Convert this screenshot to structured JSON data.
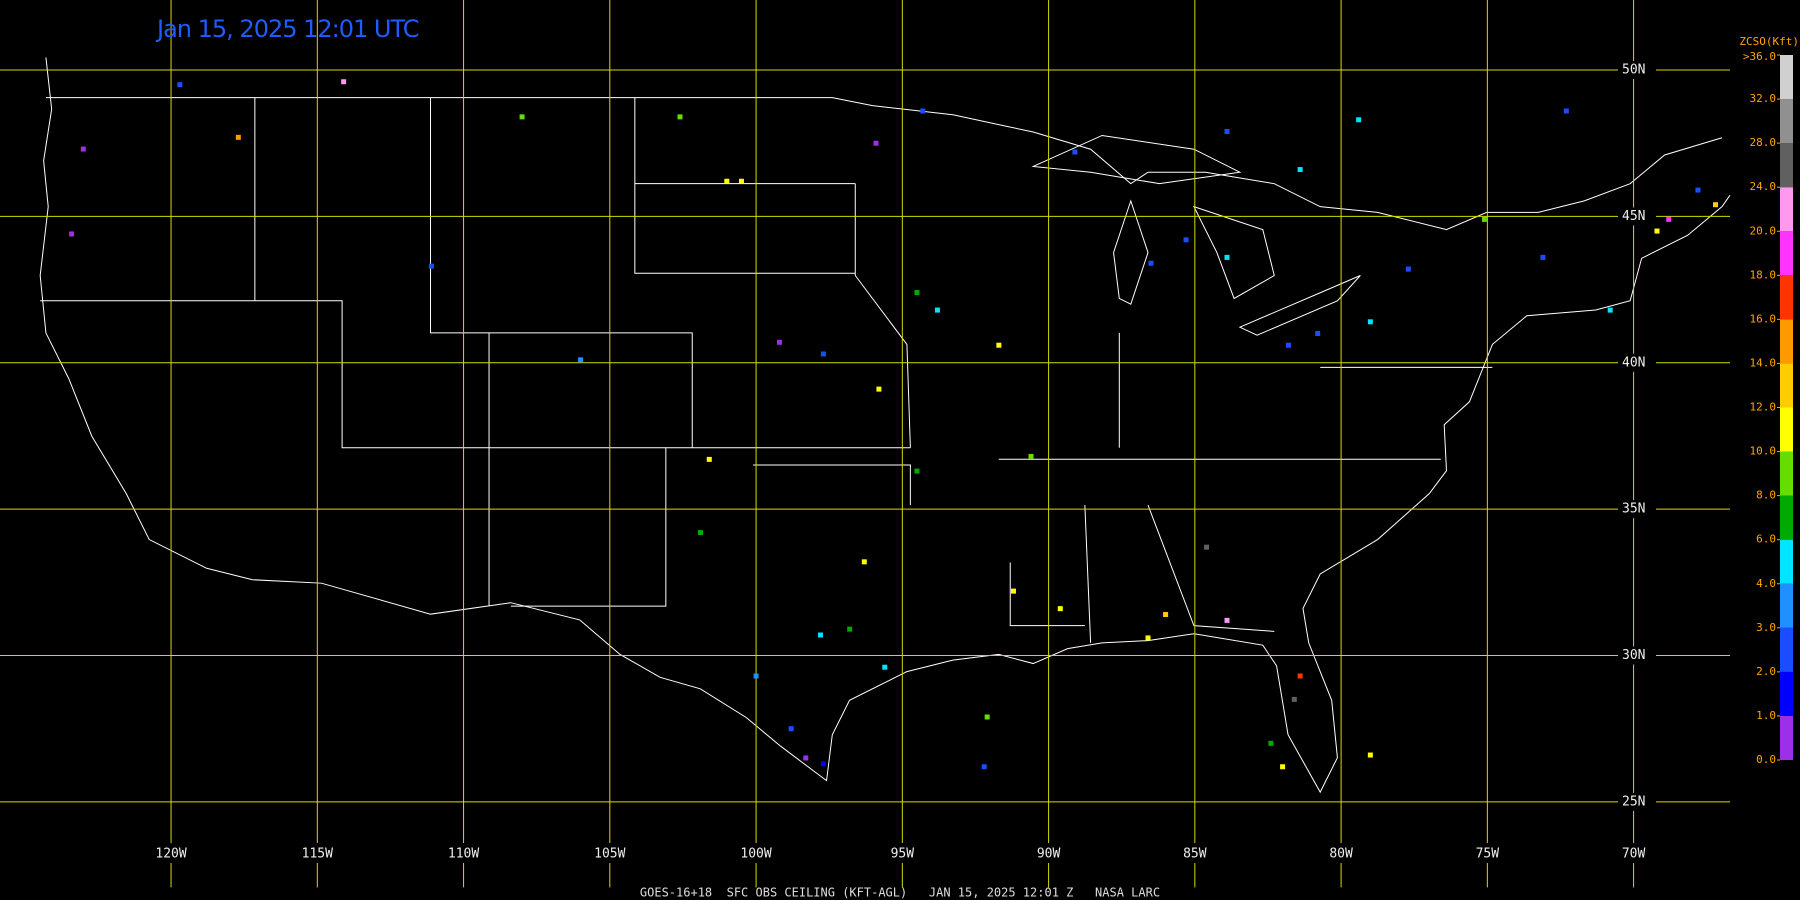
{
  "title": "Jan 15, 2025 12:01 UTC",
  "caption": "GOES-16+18  SFC OBS CEILING (KFT-AGL)   JAN 15, 2025 12:01 Z   NASA LARC",
  "map": {
    "lon_ticks": [
      {
        "value": -120,
        "label": "120W"
      },
      {
        "value": -115,
        "label": "115W"
      },
      {
        "value": -110,
        "label": "110W"
      },
      {
        "value": -105,
        "label": "105W"
      },
      {
        "value": -100,
        "label": "100W"
      },
      {
        "value": -95,
        "label": "95W"
      },
      {
        "value": -90,
        "label": "90W"
      },
      {
        "value": -85,
        "label": "85W"
      },
      {
        "value": -80,
        "label": "80W"
      },
      {
        "value": -75,
        "label": "75W"
      },
      {
        "value": -70,
        "label": "70W"
      }
    ],
    "lat_ticks": [
      {
        "value": 50,
        "label": "50N"
      },
      {
        "value": 45,
        "label": "45N"
      },
      {
        "value": 40,
        "label": "40N"
      },
      {
        "value": 35,
        "label": "35N"
      },
      {
        "value": 30,
        "label": "30N"
      },
      {
        "value": 25,
        "label": "25N"
      }
    ],
    "grid_color": "#d8d800"
  },
  "legend": {
    "title": "ZCSO(Kft)",
    "ticks": [
      {
        "value": 0,
        "label": "0.0"
      },
      {
        "value": 1,
        "label": "1.0"
      },
      {
        "value": 2,
        "label": "2.0"
      },
      {
        "value": 3,
        "label": "3.0"
      },
      {
        "value": 4,
        "label": "4.0"
      },
      {
        "value": 6,
        "label": "6.0"
      },
      {
        "value": 8,
        "label": "8.0"
      },
      {
        "value": 10,
        "label": "10.0"
      },
      {
        "value": 12,
        "label": "12.0"
      },
      {
        "value": 14,
        "label": "14.0"
      },
      {
        "value": 16,
        "label": "16.0"
      },
      {
        "value": 18,
        "label": "18.0"
      },
      {
        "value": 20,
        "label": "20.0"
      },
      {
        "value": 24,
        "label": "24.0"
      },
      {
        "value": 28,
        "label": "28.0"
      },
      {
        "value": 32,
        "label": "32.0"
      },
      {
        "value": 36,
        "label": ">36.0"
      }
    ],
    "colors": [
      "#9b30e8",
      "#0000ff",
      "#1a4dff",
      "#1e90ff",
      "#00e5ff",
      "#00aa00",
      "#66dd00",
      "#ffff00",
      "#ffcc00",
      "#ff9900",
      "#ff3300",
      "#ff33ff",
      "#ff99ee",
      "#606060",
      "#909090",
      "#d0d0d0"
    ]
  },
  "stations": [
    {
      "lon": -123.0,
      "lat": 47.3,
      "ceiling": 0.5
    },
    {
      "lon": -123.4,
      "lat": 44.4,
      "ceiling": 0.5
    },
    {
      "lon": -117.7,
      "lat": 47.7,
      "ceiling": 14
    },
    {
      "lon": -119.7,
      "lat": 49.5,
      "ceiling": 2
    },
    {
      "lon": -114.1,
      "lat": 49.6,
      "ceiling": 22
    },
    {
      "lon": -111.1,
      "lat": 43.3,
      "ceiling": 2.5
    },
    {
      "lon": -106.0,
      "lat": 40.1,
      "ceiling": 3.5
    },
    {
      "lon": -101.6,
      "lat": 36.7,
      "ceiling": 11
    },
    {
      "lon": -101.9,
      "lat": 34.2,
      "ceiling": 7
    },
    {
      "lon": -108.0,
      "lat": 48.4,
      "ceiling": 9
    },
    {
      "lon": -101.0,
      "lat": 46.2,
      "ceiling": 11
    },
    {
      "lon": -100.5,
      "lat": 46.2,
      "ceiling": 11
    },
    {
      "lon": -102.6,
      "lat": 48.4,
      "ceiling": 8
    },
    {
      "lon": -95.9,
      "lat": 47.5,
      "ceiling": 0.5
    },
    {
      "lon": -99.2,
      "lat": 40.7,
      "ceiling": 0.5
    },
    {
      "lon": -97.7,
      "lat": 40.3,
      "ceiling": 2
    },
    {
      "lon": -94.5,
      "lat": 42.4,
      "ceiling": 7
    },
    {
      "lon": -93.8,
      "lat": 41.8,
      "ceiling": 5
    },
    {
      "lon": -91.7,
      "lat": 40.6,
      "ceiling": 11
    },
    {
      "lon": -95.8,
      "lat": 39.1,
      "ceiling": 11
    },
    {
      "lon": -94.5,
      "lat": 36.3,
      "ceiling": 7
    },
    {
      "lon": -90.6,
      "lat": 36.8,
      "ceiling": 8
    },
    {
      "lon": -96.3,
      "lat": 33.2,
      "ceiling": 11
    },
    {
      "lon": -96.8,
      "lat": 30.9,
      "ceiling": 7
    },
    {
      "lon": -97.8,
      "lat": 30.7,
      "ceiling": 5
    },
    {
      "lon": -95.6,
      "lat": 29.6,
      "ceiling": 4.5
    },
    {
      "lon": -100.0,
      "lat": 29.3,
      "ceiling": 3
    },
    {
      "lon": -98.8,
      "lat": 27.5,
      "ceiling": 2.5
    },
    {
      "lon": -97.7,
      "lat": 26.3,
      "ceiling": 1.5
    },
    {
      "lon": -98.3,
      "lat": 26.5,
      "ceiling": 0.5
    },
    {
      "lon": -91.2,
      "lat": 32.2,
      "ceiling": 11
    },
    {
      "lon": -89.6,
      "lat": 31.6,
      "ceiling": 11
    },
    {
      "lon": -86.6,
      "lat": 30.6,
      "ceiling": 11
    },
    {
      "lon": -86.0,
      "lat": 31.4,
      "ceiling": 13
    },
    {
      "lon": -92.1,
      "lat": 27.9,
      "ceiling": 8
    },
    {
      "lon": -92.2,
      "lat": 26.2,
      "ceiling": 2.5
    },
    {
      "lon": -84.6,
      "lat": 33.7,
      "ceiling": 26
    },
    {
      "lon": -83.9,
      "lat": 31.2,
      "ceiling": 22
    },
    {
      "lon": -81.4,
      "lat": 29.3,
      "ceiling": 17
    },
    {
      "lon": -81.6,
      "lat": 28.5,
      "ceiling": 26
    },
    {
      "lon": -82.4,
      "lat": 27.0,
      "ceiling": 7
    },
    {
      "lon": -82.0,
      "lat": 26.2,
      "ceiling": 11
    },
    {
      "lon": -79.0,
      "lat": 26.6,
      "ceiling": 11
    },
    {
      "lon": -86.5,
      "lat": 43.4,
      "ceiling": 2
    },
    {
      "lon": -85.3,
      "lat": 44.2,
      "ceiling": 2.5
    },
    {
      "lon": -83.9,
      "lat": 43.6,
      "ceiling": 4.5
    },
    {
      "lon": -81.8,
      "lat": 40.6,
      "ceiling": 2
    },
    {
      "lon": -80.8,
      "lat": 41.0,
      "ceiling": 2
    },
    {
      "lon": -79.0,
      "lat": 41.4,
      "ceiling": 4.5
    },
    {
      "lon": -77.7,
      "lat": 43.2,
      "ceiling": 2.5
    },
    {
      "lon": -79.4,
      "lat": 48.3,
      "ceiling": 4.5
    },
    {
      "lon": -81.4,
      "lat": 46.6,
      "ceiling": 5
    },
    {
      "lon": -72.3,
      "lat": 48.6,
      "ceiling": 2.5
    },
    {
      "lon": -73.1,
      "lat": 43.6,
      "ceiling": 2.5
    },
    {
      "lon": -70.8,
      "lat": 41.8,
      "ceiling": 4.5
    },
    {
      "lon": -69.2,
      "lat": 44.5,
      "ceiling": 11
    },
    {
      "lon": -68.8,
      "lat": 44.9,
      "ceiling": 19
    },
    {
      "lon": -67.2,
      "lat": 45.4,
      "ceiling": 13
    },
    {
      "lon": -67.8,
      "lat": 45.9,
      "ceiling": 2.5
    },
    {
      "lon": -75.1,
      "lat": 44.9,
      "ceiling": 8
    },
    {
      "lon": -83.9,
      "lat": 47.9,
      "ceiling": 2.5
    },
    {
      "lon": -89.1,
      "lat": 47.2,
      "ceiling": 2
    },
    {
      "lon": -94.3,
      "lat": 48.6,
      "ceiling": 2.5
    }
  ]
}
